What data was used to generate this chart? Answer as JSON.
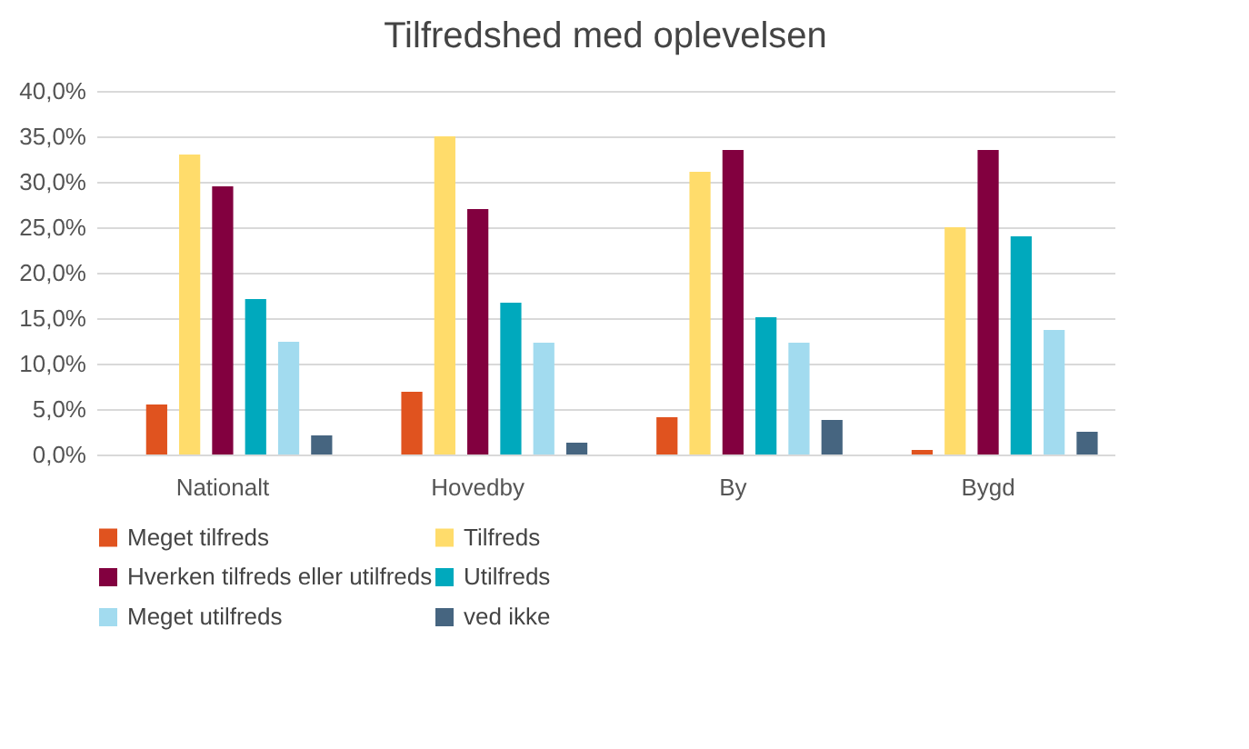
{
  "chart_data": {
    "type": "bar",
    "title": "Tilfredshed med oplevelsen",
    "categories": [
      "Nationalt",
      "Hovedby",
      "By",
      "Bygd"
    ],
    "series": [
      {
        "name": "Meget tilfreds",
        "color": "#e0531f",
        "values": [
          5.5,
          6.9,
          4.1,
          0.5
        ]
      },
      {
        "name": "Tilfreds",
        "color": "#ffdc6b",
        "values": [
          33.0,
          35.0,
          31.1,
          25.0
        ]
      },
      {
        "name": "Hverken tilfreds eller utilfreds",
        "color": "#82003f",
        "values": [
          29.5,
          27.0,
          33.5,
          33.5
        ]
      },
      {
        "name": "Utilfreds",
        "color": "#00a9bd",
        "values": [
          17.1,
          16.7,
          15.1,
          24.0
        ]
      },
      {
        "name": "Meget utilfreds",
        "color": "#a2dbef",
        "values": [
          12.4,
          12.3,
          12.3,
          13.7
        ]
      },
      {
        "name": "ved ikke",
        "color": "#466580",
        "values": [
          2.1,
          1.3,
          3.8,
          2.5
        ]
      }
    ],
    "ylim": [
      0,
      40
    ],
    "yticks": [
      {
        "value": 0,
        "label": "0,0%"
      },
      {
        "value": 5,
        "label": "5,0%"
      },
      {
        "value": 10,
        "label": "10,0%"
      },
      {
        "value": 15,
        "label": "15,0%"
      },
      {
        "value": 20,
        "label": "20,0%"
      },
      {
        "value": 25,
        "label": "25,0%"
      },
      {
        "value": 30,
        "label": "30,0%"
      },
      {
        "value": 35,
        "label": "35,0%"
      },
      {
        "value": 40,
        "label": "40,0%"
      }
    ],
    "grid": "y",
    "legend": "bottom"
  }
}
